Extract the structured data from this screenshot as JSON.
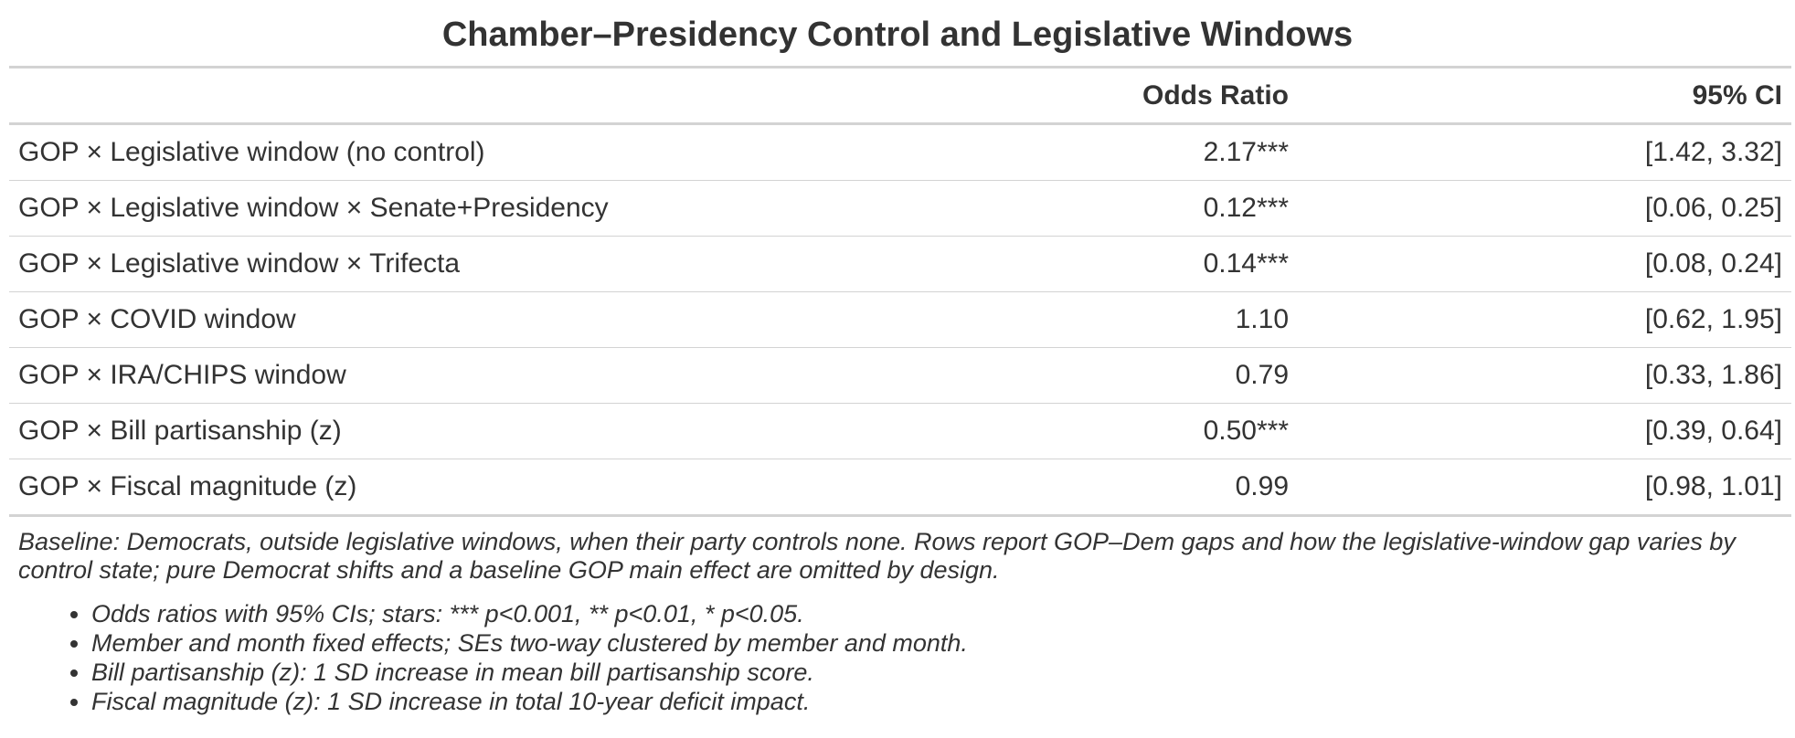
{
  "title": "Chamber–Presidency Control and Legislative Windows",
  "columns": {
    "term": "",
    "odds_ratio": "Odds Ratio",
    "ci": "95% CI"
  },
  "rows": [
    {
      "term": "GOP × Legislative window (no control)",
      "odds_ratio": "2.17***",
      "ci": "[1.42, 3.32]"
    },
    {
      "term": "GOP × Legislative window × Senate+Presidency",
      "odds_ratio": "0.12***",
      "ci": "[0.06, 0.25]"
    },
    {
      "term": "GOP × Legislative window × Trifecta",
      "odds_ratio": "0.14***",
      "ci": "[0.08, 0.24]"
    },
    {
      "term": "GOP × COVID window",
      "odds_ratio": "1.10",
      "ci": "[0.62, 1.95]"
    },
    {
      "term": "GOP × IRA/CHIPS window",
      "odds_ratio": "0.79",
      "ci": "[0.33, 1.86]"
    },
    {
      "term": "GOP × Bill partisanship (z)",
      "odds_ratio": "0.50***",
      "ci": "[0.39, 0.64]"
    },
    {
      "term": "GOP × Fiscal magnitude (z)",
      "odds_ratio": "0.99",
      "ci": "[0.98, 1.01]"
    }
  ],
  "footnote": {
    "baseline": "Baseline: Democrats, outside legislative windows, when their party controls none. Rows report GOP–Dem gaps and how the legislative-window gap varies by control state; pure Democrat shifts and a baseline GOP main effect are omitted by design.",
    "bullets": [
      "Odds ratios with 95% CIs; stars: *** p<0.001, ** p<0.01, * p<0.05.",
      "Member and month fixed effects; SEs two-way clustered by member and month.",
      "Bill partisanship (z): 1 SD increase in mean bill partisanship score.",
      "Fiscal magnitude (z): 1 SD increase in total 10-year deficit impact."
    ]
  }
}
